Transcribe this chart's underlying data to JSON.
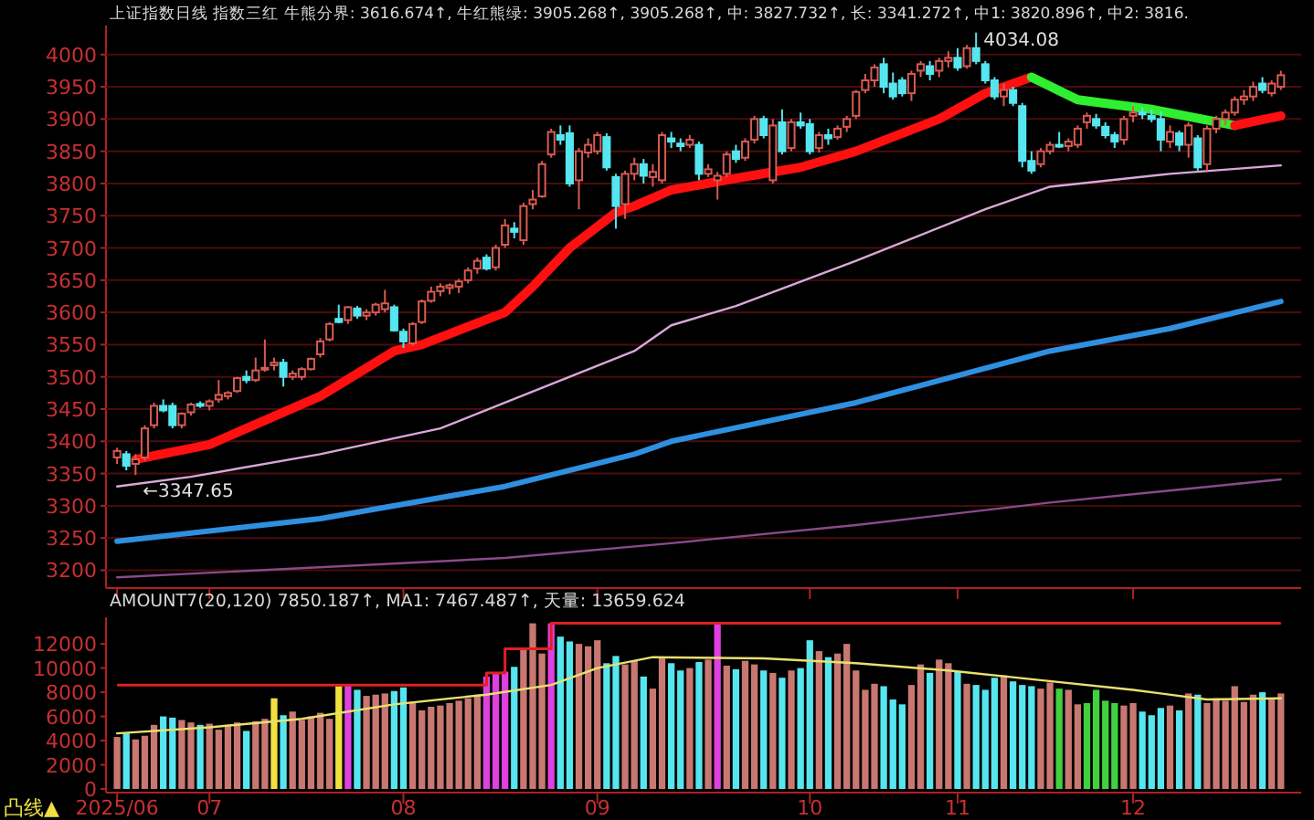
{
  "chart_data": [
    {
      "type": "candlestick",
      "title": "上证指数日线 指数三红 牛熊分界: 3616.674↑, 牛红熊绿: 3905.268↑, 3905.268↑, 中: 3827.732↑, 长: 3341.272↑, 中1: 3820.896↑, 中2: 3816.",
      "categories": [
        "2025/06",
        null,
        null,
        null,
        null,
        null,
        null,
        null,
        null,
        null,
        "07",
        null,
        null,
        null,
        null,
        null,
        null,
        null,
        null,
        null,
        null,
        null,
        null,
        null,
        null,
        null,
        null,
        null,
        null,
        null,
        null,
        "08",
        null,
        null,
        null,
        null,
        null,
        null,
        null,
        null,
        null,
        null,
        null,
        null,
        null,
        null,
        null,
        null,
        null,
        null,
        null,
        null,
        "09",
        null,
        null,
        null,
        null,
        null,
        null,
        null,
        null,
        null,
        null,
        null,
        null,
        null,
        null,
        null,
        null,
        null,
        null,
        null,
        null,
        null,
        null,
        "10",
        null,
        null,
        null,
        null,
        null,
        null,
        null,
        null,
        null,
        null,
        null,
        null,
        null,
        null,
        null,
        "11",
        null,
        null,
        null,
        null,
        null,
        null,
        null,
        null,
        null,
        null,
        null,
        null,
        null,
        null,
        null,
        null,
        null,
        null,
        "12",
        null,
        null,
        null,
        null,
        null,
        null,
        null,
        null,
        null,
        null,
        null,
        null,
        null,
        null,
        null,
        null
      ],
      "ohlc": [
        [
          3375,
          3390,
          3365,
          3385
        ],
        [
          3380,
          3385,
          3355,
          3362
        ],
        [
          3365,
          3380,
          3347.65,
          3372
        ],
        [
          3375,
          3425,
          3370,
          3420
        ],
        [
          3425,
          3460,
          3420,
          3455
        ],
        [
          3455,
          3465,
          3445,
          3448
        ],
        [
          3455,
          3460,
          3420,
          3425
        ],
        [
          3425,
          3445,
          3420,
          3443
        ],
        [
          3445,
          3460,
          3440,
          3457
        ],
        [
          3458,
          3462,
          3452,
          3455
        ],
        [
          3455,
          3465,
          3448,
          3462
        ],
        [
          3465,
          3495,
          3460,
          3472
        ],
        [
          3470,
          3478,
          3465,
          3475
        ],
        [
          3478,
          3500,
          3475,
          3498
        ],
        [
          3500,
          3510,
          3490,
          3495
        ],
        [
          3495,
          3530,
          3492,
          3510
        ],
        [
          3512,
          3558,
          3508,
          3514
        ],
        [
          3518,
          3530,
          3510,
          3522
        ],
        [
          3522,
          3528,
          3485,
          3500
        ],
        [
          3500,
          3510,
          3495,
          3505
        ],
        [
          3500,
          3515,
          3495,
          3512
        ],
        [
          3512,
          3530,
          3510,
          3528
        ],
        [
          3535,
          3560,
          3530,
          3555
        ],
        [
          3558,
          3585,
          3555,
          3582
        ],
        [
          3590,
          3612,
          3583,
          3585
        ],
        [
          3588,
          3610,
          3582,
          3608
        ],
        [
          3606,
          3610,
          3590,
          3595
        ],
        [
          3595,
          3605,
          3588,
          3600
        ],
        [
          3600,
          3615,
          3595,
          3612
        ],
        [
          3605,
          3635,
          3600,
          3614
        ],
        [
          3608,
          3612,
          3570,
          3572
        ],
        [
          3570,
          3575,
          3545,
          3555
        ],
        [
          3552,
          3585,
          3548,
          3582
        ],
        [
          3585,
          3620,
          3582,
          3617
        ],
        [
          3618,
          3640,
          3615,
          3632
        ],
        [
          3633,
          3645,
          3625,
          3640
        ],
        [
          3638,
          3645,
          3628,
          3642
        ],
        [
          3640,
          3652,
          3630,
          3648
        ],
        [
          3650,
          3670,
          3645,
          3665
        ],
        [
          3668,
          3685,
          3660,
          3680
        ],
        [
          3685,
          3690,
          3665,
          3668
        ],
        [
          3670,
          3705,
          3665,
          3700
        ],
        [
          3705,
          3745,
          3700,
          3735
        ],
        [
          3730,
          3740,
          3715,
          3725
        ],
        [
          3712,
          3770,
          3705,
          3765
        ],
        [
          3768,
          3790,
          3760,
          3775
        ],
        [
          3780,
          3835,
          3778,
          3830
        ],
        [
          3845,
          3885,
          3840,
          3880
        ],
        [
          3875,
          3890,
          3860,
          3868
        ],
        [
          3878,
          3890,
          3795,
          3800
        ],
        [
          3805,
          3855,
          3760,
          3850
        ],
        [
          3848,
          3870,
          3840,
          3860
        ],
        [
          3850,
          3880,
          3845,
          3875
        ],
        [
          3872,
          3878,
          3820,
          3825
        ],
        [
          3810,
          3815,
          3730,
          3765
        ],
        [
          3768,
          3820,
          3745,
          3815
        ],
        [
          3815,
          3840,
          3805,
          3830
        ],
        [
          3830,
          3838,
          3800,
          3812
        ],
        [
          3810,
          3830,
          3795,
          3818
        ],
        [
          3805,
          3880,
          3800,
          3875
        ],
        [
          3870,
          3880,
          3855,
          3865
        ],
        [
          3862,
          3870,
          3850,
          3858
        ],
        [
          3860,
          3875,
          3855,
          3868
        ],
        [
          3860,
          3865,
          3805,
          3815
        ],
        [
          3815,
          3830,
          3810,
          3822
        ],
        [
          3805,
          3818,
          3775,
          3812
        ],
        [
          3815,
          3850,
          3810,
          3845
        ],
        [
          3850,
          3860,
          3832,
          3838
        ],
        [
          3840,
          3870,
          3835,
          3865
        ],
        [
          3868,
          3905,
          3862,
          3900
        ],
        [
          3900,
          3905,
          3870,
          3875
        ],
        [
          3805,
          3900,
          3800,
          3890
        ],
        [
          3895,
          3915,
          3845,
          3850
        ],
        [
          3855,
          3900,
          3850,
          3895
        ],
        [
          3895,
          3910,
          3885,
          3890
        ],
        [
          3892,
          3900,
          3845,
          3850
        ],
        [
          3855,
          3880,
          3848,
          3875
        ],
        [
          3875,
          3885,
          3860,
          3870
        ],
        [
          3872,
          3890,
          3868,
          3885
        ],
        [
          3888,
          3905,
          3880,
          3900
        ],
        [
          3905,
          3945,
          3900,
          3942
        ],
        [
          3945,
          3970,
          3940,
          3960
        ],
        [
          3960,
          3985,
          3950,
          3980
        ],
        [
          3985,
          3995,
          3940,
          3950
        ],
        [
          3955,
          3972,
          3930,
          3935
        ],
        [
          3960,
          3965,
          3935,
          3940
        ],
        [
          3940,
          3975,
          3928,
          3970
        ],
        [
          3975,
          3990,
          3965,
          3985
        ],
        [
          3982,
          3990,
          3960,
          3970
        ],
        [
          3975,
          3995,
          3965,
          3990
        ],
        [
          3990,
          4005,
          3980,
          3995
        ],
        [
          3995,
          4010,
          3975,
          3980
        ],
        [
          3982,
          4015,
          3978,
          4010
        ],
        [
          4010,
          4034.08,
          3985,
          3990
        ],
        [
          3985,
          3990,
          3955,
          3960
        ],
        [
          3960,
          3965,
          3930,
          3935
        ],
        [
          3935,
          3955,
          3920,
          3945
        ],
        [
          3945,
          3950,
          3920,
          3925
        ],
        [
          3920,
          3925,
          3825,
          3835
        ],
        [
          3835,
          3850,
          3815,
          3820
        ],
        [
          3830,
          3855,
          3825,
          3850
        ],
        [
          3850,
          3865,
          3845,
          3860
        ],
        [
          3860,
          3880,
          3855,
          3858
        ],
        [
          3858,
          3870,
          3850,
          3865
        ],
        [
          3860,
          3890,
          3855,
          3885
        ],
        [
          3895,
          3910,
          3885,
          3905
        ],
        [
          3900,
          3908,
          3885,
          3890
        ],
        [
          3888,
          3895,
          3870,
          3875
        ],
        [
          3875,
          3880,
          3855,
          3865
        ],
        [
          3868,
          3905,
          3860,
          3900
        ],
        [
          3905,
          3920,
          3895,
          3910
        ],
        [
          3910,
          3918,
          3900,
          3908
        ],
        [
          3905,
          3915,
          3895,
          3900
        ],
        [
          3900,
          3912,
          3850,
          3868
        ],
        [
          3865,
          3890,
          3855,
          3880
        ],
        [
          3878,
          3882,
          3850,
          3860
        ],
        [
          3860,
          3895,
          3840,
          3890
        ],
        [
          3870,
          3875,
          3820,
          3825
        ],
        [
          3830,
          3890,
          3820,
          3885
        ],
        [
          3885,
          3905,
          3878,
          3900
        ],
        [
          3900,
          3915,
          3890,
          3910
        ],
        [
          3910,
          3935,
          3905,
          3930
        ],
        [
          3930,
          3945,
          3922,
          3935
        ],
        [
          3935,
          3958,
          3928,
          3950
        ],
        [
          3955,
          3965,
          3940,
          3945
        ],
        [
          3940,
          3960,
          3935,
          3955
        ],
        [
          3950,
          3975,
          3945,
          3968
        ]
      ],
      "series": [
        {
          "type": "line",
          "color": "#8a4a8a",
          "values": [
            3189,
            null,
            null,
            null,
            null,
            null,
            null,
            null,
            null,
            null,
            null,
            null,
            null,
            null,
            null,
            null,
            null,
            null,
            null,
            null,
            null,
            null,
            null,
            null,
            null,
            null,
            null,
            null,
            null,
            null,
            null,
            null,
            null,
            null,
            null,
            null,
            null,
            null,
            null,
            null,
            null,
            null,
            3219,
            null,
            null,
            null,
            null,
            null,
            null,
            null,
            null,
            null,
            null,
            null,
            null,
            null,
            null,
            null,
            null,
            null,
            3242,
            null,
            null,
            null,
            null,
            null,
            null,
            null,
            null,
            null,
            null,
            null,
            null,
            null,
            null,
            null,
            null,
            null,
            null,
            null,
            3270,
            null,
            null,
            null,
            null,
            null,
            null,
            null,
            null,
            null,
            null,
            null,
            null,
            null,
            null,
            null,
            null,
            null,
            null,
            null,
            null,
            3305,
            null,
            null,
            null,
            null,
            null,
            null,
            null,
            null,
            null,
            null,
            null,
            null,
            null,
            null,
            null,
            null,
            null,
            null,
            null,
            null,
            null,
            null,
            null,
            null,
            3341
          ]
        },
        {
          "type": "line",
          "color": "#2f8fe0",
          "values": [
            3245,
            null,
            null,
            null,
            null,
            null,
            null,
            null,
            null,
            null,
            null,
            null,
            null,
            null,
            null,
            null,
            null,
            null,
            null,
            null,
            null,
            null,
            3280,
            null,
            null,
            null,
            null,
            null,
            null,
            null,
            null,
            null,
            null,
            null,
            null,
            null,
            null,
            null,
            null,
            null,
            null,
            null,
            3330,
            null,
            null,
            null,
            null,
            null,
            null,
            null,
            null,
            null,
            null,
            null,
            null,
            null,
            3380,
            null,
            null,
            null,
            3400,
            null,
            null,
            null,
            null,
            null,
            null,
            null,
            null,
            null,
            null,
            null,
            null,
            null,
            null,
            null,
            null,
            null,
            null,
            null,
            3460,
            null,
            null,
            null,
            null,
            null,
            null,
            null,
            null,
            null,
            null,
            null,
            null,
            null,
            null,
            null,
            null,
            null,
            null,
            null,
            null,
            3540,
            null,
            null,
            null,
            null,
            null,
            null,
            null,
            null,
            null,
            null,
            null,
            null,
            3575,
            null,
            null,
            null,
            null,
            null,
            null,
            null,
            null,
            null,
            null,
            null,
            3617
          ]
        },
        {
          "type": "line",
          "color": "#d8a8d8",
          "values": [
            3330,
            null,
            null,
            null,
            null,
            null,
            null,
            null,
            3345,
            null,
            null,
            null,
            null,
            null,
            null,
            null,
            null,
            null,
            null,
            null,
            null,
            null,
            3380,
            null,
            null,
            null,
            null,
            null,
            null,
            null,
            null,
            null,
            null,
            null,
            null,
            3420,
            null,
            null,
            null,
            null,
            null,
            null,
            3460,
            null,
            null,
            null,
            null,
            null,
            null,
            3500,
            null,
            null,
            null,
            null,
            null,
            null,
            3540,
            null,
            null,
            null,
            3580,
            null,
            null,
            null,
            null,
            null,
            null,
            3610,
            null,
            null,
            null,
            null,
            null,
            null,
            null,
            null,
            null,
            null,
            null,
            null,
            3680,
            null,
            null,
            null,
            null,
            null,
            null,
            null,
            null,
            null,
            null,
            null,
            null,
            null,
            3760,
            null,
            null,
            null,
            null,
            null,
            null,
            3795,
            null,
            null,
            null,
            null,
            null,
            null,
            null,
            null,
            null,
            null,
            null,
            null,
            3815,
            null,
            null,
            null,
            null,
            null,
            null,
            null,
            null,
            null,
            null,
            null,
            3828
          ]
        },
        {
          "type": "line",
          "color": "#ff1010",
          "values": [
            null,
            null,
            3372,
            null,
            null,
            null,
            null,
            null,
            null,
            null,
            3395,
            null,
            null,
            null,
            null,
            null,
            null,
            null,
            null,
            null,
            null,
            null,
            3470,
            null,
            null,
            null,
            null,
            null,
            null,
            null,
            3540,
            null,
            null,
            3550,
            null,
            null,
            null,
            null,
            null,
            null,
            null,
            null,
            3600,
            null,
            null,
            3640,
            null,
            null,
            null,
            3700,
            null,
            null,
            null,
            null,
            3755,
            null,
            3765,
            null,
            null,
            null,
            3790,
            null,
            null,
            null,
            null,
            null,
            null,
            3808,
            null,
            null,
            null,
            null,
            null,
            null,
            3825,
            null,
            null,
            null,
            null,
            null,
            3850,
            null,
            null,
            null,
            null,
            null,
            null,
            null,
            null,
            3900,
            null,
            null,
            null,
            null,
            3940,
            null,
            null,
            null,
            null,
            3965,
            null,
            null,
            null,
            null,
            null,
            null,
            null,
            null,
            null,
            null,
            null,
            null,
            null,
            null,
            null,
            null,
            null,
            null,
            null,
            null,
            null,
            null,
            null,
            null,
            null,
            null,
            null
          ]
        },
        {
          "type": "line",
          "color": "#30ee30",
          "values": [
            null,
            null,
            null,
            null,
            null,
            null,
            null,
            null,
            null,
            null,
            null,
            null,
            null,
            null,
            null,
            null,
            null,
            null,
            null,
            null,
            null,
            null,
            null,
            null,
            null,
            null,
            null,
            null,
            null,
            null,
            null,
            null,
            null,
            null,
            null,
            null,
            null,
            null,
            null,
            null,
            null,
            null,
            null,
            null,
            null,
            null,
            null,
            null,
            null,
            null,
            null,
            null,
            null,
            null,
            null,
            null,
            null,
            null,
            null,
            null,
            null,
            null,
            null,
            null,
            null,
            null,
            null,
            null,
            null,
            null,
            null,
            null,
            null,
            null,
            null,
            null,
            null,
            null,
            null,
            null,
            null,
            null,
            null,
            null,
            null,
            null,
            null,
            null,
            null,
            null,
            null,
            null,
            null,
            null,
            null,
            null,
            null,
            null,
            null,
            3965,
            null,
            null,
            null,
            null,
            3930,
            null,
            null,
            null,
            null,
            null,
            null,
            null,
            3915,
            null,
            null,
            null,
            null,
            null,
            null,
            null,
            null,
            3890,
            null,
            null,
            null,
            null,
            null
          ]
        },
        {
          "type": "line",
          "color": "#ff1010",
          "values": [
            null,
            null,
            null,
            null,
            null,
            null,
            null,
            null,
            null,
            null,
            null,
            null,
            null,
            null,
            null,
            null,
            null,
            null,
            null,
            null,
            null,
            null,
            null,
            null,
            null,
            null,
            null,
            null,
            null,
            null,
            null,
            null,
            null,
            null,
            null,
            null,
            null,
            null,
            null,
            null,
            null,
            null,
            null,
            null,
            null,
            null,
            null,
            null,
            null,
            null,
            null,
            null,
            null,
            null,
            null,
            null,
            null,
            null,
            null,
            null,
            null,
            null,
            null,
            null,
            null,
            null,
            null,
            null,
            null,
            null,
            null,
            null,
            null,
            null,
            null,
            null,
            null,
            null,
            null,
            null,
            null,
            null,
            null,
            null,
            null,
            null,
            null,
            null,
            null,
            null,
            null,
            null,
            null,
            null,
            null,
            null,
            null,
            null,
            null,
            null,
            null,
            null,
            null,
            null,
            null,
            null,
            null,
            null,
            null,
            null,
            null,
            null,
            null,
            null,
            null,
            null,
            null,
            null,
            null,
            null,
            null,
            3890,
            null,
            null,
            null,
            null,
            3905
          ]
        }
      ],
      "ylim": [
        3178,
        4045
      ],
      "yticks": [
        3200,
        3250,
        3300,
        3350,
        3400,
        3450,
        3500,
        3550,
        3600,
        3650,
        3700,
        3750,
        3800,
        3850,
        3900,
        3950,
        4000
      ],
      "grid": "y",
      "tick_labels": "y",
      "annotations": [
        "←3347.65",
        "4034.08"
      ]
    },
    {
      "type": "bar",
      "title": "AMOUNT7(20,120) 7850.187↑, MA1: 7467.487↑, 天量: 13659.624",
      "categories": [
        "2025/06",
        null,
        null,
        null,
        null,
        null,
        null,
        null,
        null,
        null,
        "07",
        null,
        null,
        null,
        null,
        null,
        null,
        null,
        null,
        null,
        null,
        null,
        null,
        null,
        null,
        null,
        null,
        null,
        null,
        null,
        null,
        "08",
        null,
        null,
        null,
        null,
        null,
        null,
        null,
        null,
        null,
        null,
        null,
        null,
        null,
        null,
        null,
        null,
        null,
        null,
        null,
        null,
        "09",
        null,
        null,
        null,
        null,
        null,
        null,
        null,
        null,
        null,
        null,
        null,
        null,
        null,
        null,
        null,
        null,
        null,
        null,
        null,
        null,
        null,
        null,
        "10",
        null,
        null,
        null,
        null,
        null,
        null,
        null,
        null,
        null,
        null,
        null,
        null,
        null,
        null,
        null,
        "11",
        null,
        null,
        null,
        null,
        null,
        null,
        null,
        null,
        null,
        null,
        null,
        null,
        null,
        null,
        null,
        null,
        null,
        null,
        "12",
        null,
        null,
        null,
        null,
        null,
        null,
        null,
        null,
        null,
        null,
        null,
        null,
        null,
        null,
        null,
        null
      ],
      "values": [
        4300,
        4600,
        4100,
        4400,
        5300,
        6000,
        5900,
        5700,
        5500,
        5300,
        5400,
        4900,
        5300,
        5500,
        4800,
        5600,
        5800,
        7500,
        6100,
        6400,
        5700,
        6000,
        6300,
        5800,
        8500,
        8600,
        8200,
        7700,
        7800,
        7900,
        8100,
        8400,
        7200,
        6500,
        6800,
        6900,
        7100,
        7300,
        7500,
        7800,
        9300,
        9600,
        9700,
        10100,
        11600,
        13700,
        11200,
        13700,
        12600,
        12200,
        12000,
        11800,
        12300,
        10400,
        11000,
        10300,
        10600,
        9300,
        8300,
        10900,
        10400,
        9800,
        10000,
        10500,
        10700,
        13600,
        10200,
        9900,
        10600,
        10300,
        9800,
        9600,
        9200,
        9800,
        10000,
        12300,
        11400,
        10900,
        11200,
        12000,
        9800,
        8200,
        8700,
        8500,
        7400,
        7000,
        8600,
        10300,
        9600,
        10700,
        10400,
        9700,
        8700,
        8600,
        8200,
        9200,
        9400,
        8900,
        8600,
        8500,
        8300,
        8800,
        8300,
        8200,
        7000,
        7100,
        8200,
        7300,
        7100,
        6900,
        7100,
        6400,
        6100,
        6700,
        6900,
        6500,
        7900,
        7800,
        7100,
        7500,
        7300,
        8500,
        7200,
        7800,
        8000,
        7400,
        7900
      ],
      "colors": [
        "#c87870",
        "#55e6f0",
        "#c87870",
        "#c87870",
        "#c87870",
        "#55e6f0",
        "#55e6f0",
        "#c87870",
        "#c87870",
        "#55e6f0",
        "#c87870",
        "#c87870",
        "#c87870",
        "#c87870",
        "#55e6f0",
        "#c87870",
        "#c87870",
        "#f0e040",
        "#55e6f0",
        "#c87870",
        "#c87870",
        "#c87870",
        "#c87870",
        "#c87870",
        "#f0e040",
        "#e040e0",
        "#55e6f0",
        "#c87870",
        "#c87870",
        "#c87870",
        "#55e6f0",
        "#55e6f0",
        "#c87870",
        "#c87870",
        "#c87870",
        "#c87870",
        "#c87870",
        "#c87870",
        "#c87870",
        "#c87870",
        "#e040e0",
        "#e040e0",
        "#e040e0",
        "#55e6f0",
        "#c87870",
        "#c87870",
        "#c87870",
        "#e040e0",
        "#55e6f0",
        "#55e6f0",
        "#c87870",
        "#c87870",
        "#c87870",
        "#55e6f0",
        "#55e6f0",
        "#c87870",
        "#c87870",
        "#55e6f0",
        "#c87870",
        "#c87870",
        "#55e6f0",
        "#55e6f0",
        "#c87870",
        "#55e6f0",
        "#c87870",
        "#e040e0",
        "#c87870",
        "#55e6f0",
        "#c87870",
        "#c87870",
        "#55e6f0",
        "#c87870",
        "#55e6f0",
        "#c87870",
        "#55e6f0",
        "#55e6f0",
        "#c87870",
        "#55e6f0",
        "#c87870",
        "#c87870",
        "#c87870",
        "#c87870",
        "#c87870",
        "#55e6f0",
        "#55e6f0",
        "#55e6f0",
        "#c87870",
        "#c87870",
        "#55e6f0",
        "#c87870",
        "#c87870",
        "#55e6f0",
        "#c87870",
        "#55e6f0",
        "#55e6f0",
        "#55e6f0",
        "#c87870",
        "#55e6f0",
        "#55e6f0",
        "#55e6f0",
        "#c87870",
        "#c87870",
        "#40d040",
        "#c87870",
        "#c87870",
        "#40d040",
        "#40d040",
        "#40d040",
        "#40d040",
        "#c87870",
        "#c87870",
        "#55e6f0",
        "#55e6f0",
        "#55e6f0",
        "#c87870",
        "#55e6f0",
        "#c87870",
        "#55e6f0",
        "#c87870",
        "#c87870",
        "#c87870",
        "#c87870",
        "#c87870",
        "#c87870",
        "#55e6f0",
        "#c87870",
        "#c87870"
      ],
      "series": [
        {
          "type": "line",
          "color": "#e8e070",
          "values": [
            4600,
            null,
            null,
            null,
            null,
            null,
            null,
            null,
            null,
            null,
            5100,
            null,
            null,
            null,
            null,
            null,
            null,
            null,
            null,
            null,
            5800,
            null,
            null,
            null,
            null,
            null,
            null,
            null,
            null,
            null,
            7000,
            null,
            null,
            null,
            null,
            null,
            null,
            null,
            null,
            null,
            7800,
            null,
            null,
            null,
            null,
            null,
            null,
            8600,
            null,
            null,
            null,
            null,
            10000,
            null,
            null,
            null,
            null,
            null,
            10900,
            null,
            null,
            null,
            null,
            null,
            null,
            null,
            null,
            null,
            null,
            null,
            10800,
            null,
            null,
            null,
            null,
            null,
            null,
            null,
            null,
            null,
            10400,
            null,
            null,
            null,
            null,
            null,
            null,
            null,
            null,
            null,
            9800,
            null,
            null,
            null,
            null,
            null,
            null,
            null,
            null,
            null,
            9000,
            null,
            null,
            null,
            null,
            null,
            null,
            null,
            null,
            null,
            8200,
            null,
            null,
            null,
            null,
            null,
            null,
            null,
            7400,
            null,
            null,
            null,
            null,
            null,
            null,
            null,
            7500
          ]
        },
        {
          "type": "step",
          "color": "#e02020",
          "values": [
            8600,
            null,
            null,
            null,
            null,
            null,
            null,
            null,
            null,
            null,
            null,
            null,
            null,
            null,
            null,
            null,
            null,
            null,
            null,
            null,
            null,
            null,
            null,
            null,
            null,
            null,
            null,
            null,
            null,
            null,
            null,
            null,
            null,
            null,
            null,
            null,
            null,
            null,
            null,
            8600,
            9600,
            null,
            11600,
            null,
            null,
            null,
            null,
            13700,
            null,
            null,
            null,
            null,
            null,
            null,
            null,
            null,
            null,
            null,
            null,
            null,
            null,
            null,
            null,
            null,
            null,
            null,
            null,
            null,
            null,
            null,
            null,
            null,
            null,
            null,
            null,
            null,
            null,
            null,
            null,
            null,
            null,
            null,
            null,
            null,
            null,
            null,
            null,
            null,
            null,
            null,
            null,
            null,
            null,
            null,
            null,
            null,
            null,
            null,
            null,
            null,
            null,
            null,
            null,
            null,
            null,
            null,
            null,
            null,
            null,
            null,
            null,
            null,
            null,
            null,
            null,
            null,
            null,
            null,
            null,
            null,
            null,
            null,
            null,
            null,
            null,
            null,
            13700
          ]
        }
      ],
      "ylim": [
        0,
        14200
      ],
      "yticks": [
        0,
        2000,
        4000,
        6000,
        8000,
        10000,
        12000
      ],
      "annotations": [
        "凸线▲"
      ]
    }
  ]
}
